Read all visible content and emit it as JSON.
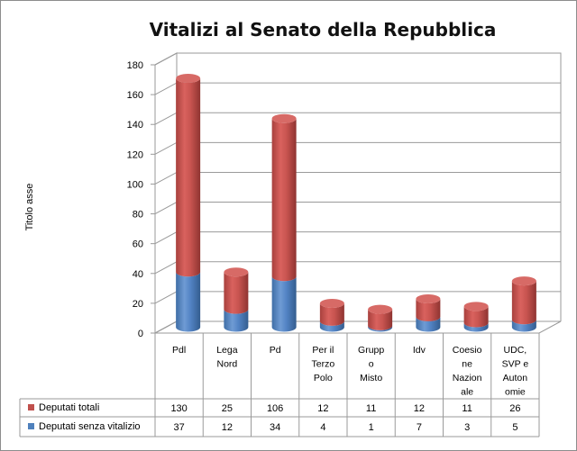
{
  "chart_data": {
    "type": "bar",
    "stacked": true,
    "style": "3d-cylinder",
    "title": "Vitalizi al Senato della Repubblica",
    "ylabel": "Titolo asse",
    "ylim": [
      0,
      180
    ],
    "yticks": [
      0,
      20,
      40,
      60,
      80,
      100,
      120,
      140,
      160,
      180
    ],
    "grid": true,
    "categories": [
      "Pdl",
      "Lega Nord",
      "Pd",
      "Per il Terzo Polo",
      "Gruppo Misto",
      "Idv",
      "Coesione Nazionale",
      "UDC, SVP e Autonomie"
    ],
    "category_lines": [
      [
        "Pdl"
      ],
      [
        "Lega",
        "Nord"
      ],
      [
        "Pd"
      ],
      [
        "Per il",
        "Terzo",
        "Polo"
      ],
      [
        "Grupp",
        "o",
        "Misto"
      ],
      [
        "Idv"
      ],
      [
        "Coesio",
        "ne",
        "Nazion",
        "ale"
      ],
      [
        "UDC,",
        "SVP e",
        "Auton",
        "omie"
      ]
    ],
    "series": [
      {
        "name": "Deputati totali",
        "values": [
          130,
          25,
          106,
          12,
          11,
          12,
          11,
          26
        ],
        "color": "#c0504d"
      },
      {
        "name": "Deputati senza vitalizio",
        "values": [
          37,
          12,
          34,
          4,
          1,
          7,
          3,
          5
        ],
        "color": "#4f81bd"
      }
    ],
    "legend": "data-table-left"
  }
}
